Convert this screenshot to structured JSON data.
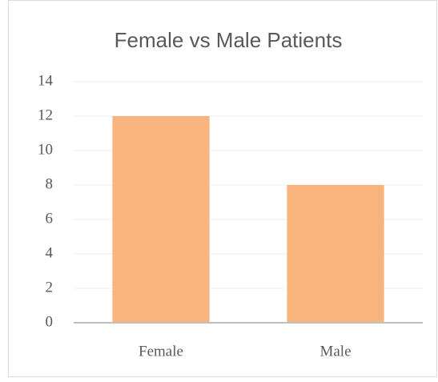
{
  "chart_data": {
    "type": "bar",
    "title": "Female vs Male Patients",
    "categories": [
      "Female",
      "Male"
    ],
    "values": [
      12,
      8
    ],
    "color": "#f8b47c",
    "ylim": [
      0,
      14
    ],
    "yticks": [
      0,
      2,
      4,
      6,
      8,
      10,
      12,
      14
    ],
    "grid": true
  }
}
